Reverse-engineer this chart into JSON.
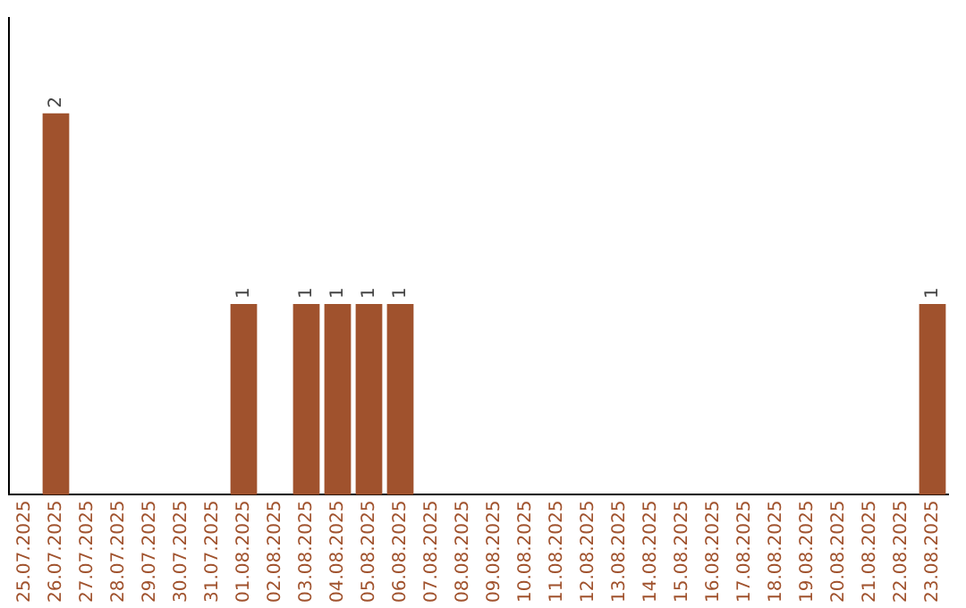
{
  "chart_data": {
    "type": "bar",
    "categories": [
      "25.07.2025",
      "26.07.2025",
      "27.07.2025",
      "28.07.2025",
      "29.07.2025",
      "30.07.2025",
      "31.07.2025",
      "01.08.2025",
      "02.08.2025",
      "03.08.2025",
      "04.08.2025",
      "05.08.2025",
      "06.08.2025",
      "07.08.2025",
      "08.08.2025",
      "09.08.2025",
      "10.08.2025",
      "11.08.2025",
      "12.08.2025",
      "13.08.2025",
      "14.08.2025",
      "15.08.2025",
      "16.08.2025",
      "17.08.2025",
      "18.08.2025",
      "19.08.2025",
      "20.08.2025",
      "21.08.2025",
      "22.08.2025",
      "23.08.2025"
    ],
    "values": [
      0,
      2,
      0,
      0,
      0,
      0,
      0,
      1,
      0,
      1,
      1,
      1,
      1,
      0,
      0,
      0,
      0,
      0,
      0,
      0,
      0,
      0,
      0,
      0,
      0,
      0,
      0,
      0,
      0,
      1
    ],
    "value_labels": [
      null,
      "2",
      null,
      null,
      null,
      null,
      null,
      "1",
      null,
      "1",
      "1",
      "1",
      "1",
      null,
      null,
      null,
      null,
      null,
      null,
      null,
      null,
      null,
      null,
      null,
      null,
      null,
      null,
      null,
      null,
      "1"
    ],
    "color": "#a0522d",
    "tick_labels": "x",
    "grid": false,
    "legend": false
  }
}
